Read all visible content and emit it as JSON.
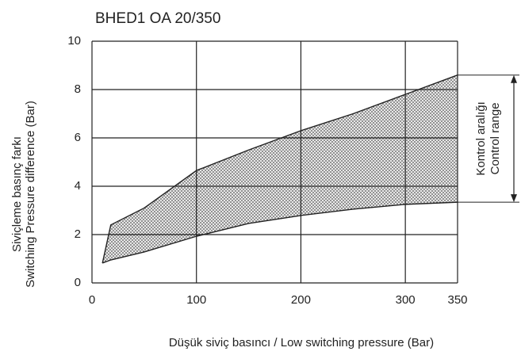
{
  "chart_data": {
    "type": "area",
    "title": "BHED1 OA 20/350",
    "x_label": "Düşük siviç basıncı / Low switching pressure (Bar)",
    "y_label": [
      "Siviçleme basınç farkı",
      "Switching Pressure difference (Bar)"
    ],
    "annotation": [
      "Kontrol aralığı",
      "Control range"
    ],
    "x": [
      10,
      18,
      50,
      100,
      150,
      200,
      250,
      300,
      350
    ],
    "series": [
      {
        "values": [
          0.82,
          2.4,
          3.1,
          4.65,
          5.5,
          6.3,
          7.0,
          7.8,
          8.6
        ]
      },
      {
        "values": [
          0.82,
          0.95,
          1.28,
          1.93,
          2.46,
          2.79,
          3.05,
          3.25,
          3.34
        ]
      }
    ],
    "color": "#555555",
    "xlim": [
      0,
      350
    ],
    "xticks": [
      0,
      100,
      200,
      300,
      350
    ],
    "ylim": [
      0,
      10
    ],
    "yticks": [
      0,
      2,
      4,
      6,
      8,
      10
    ],
    "grid": true
  }
}
